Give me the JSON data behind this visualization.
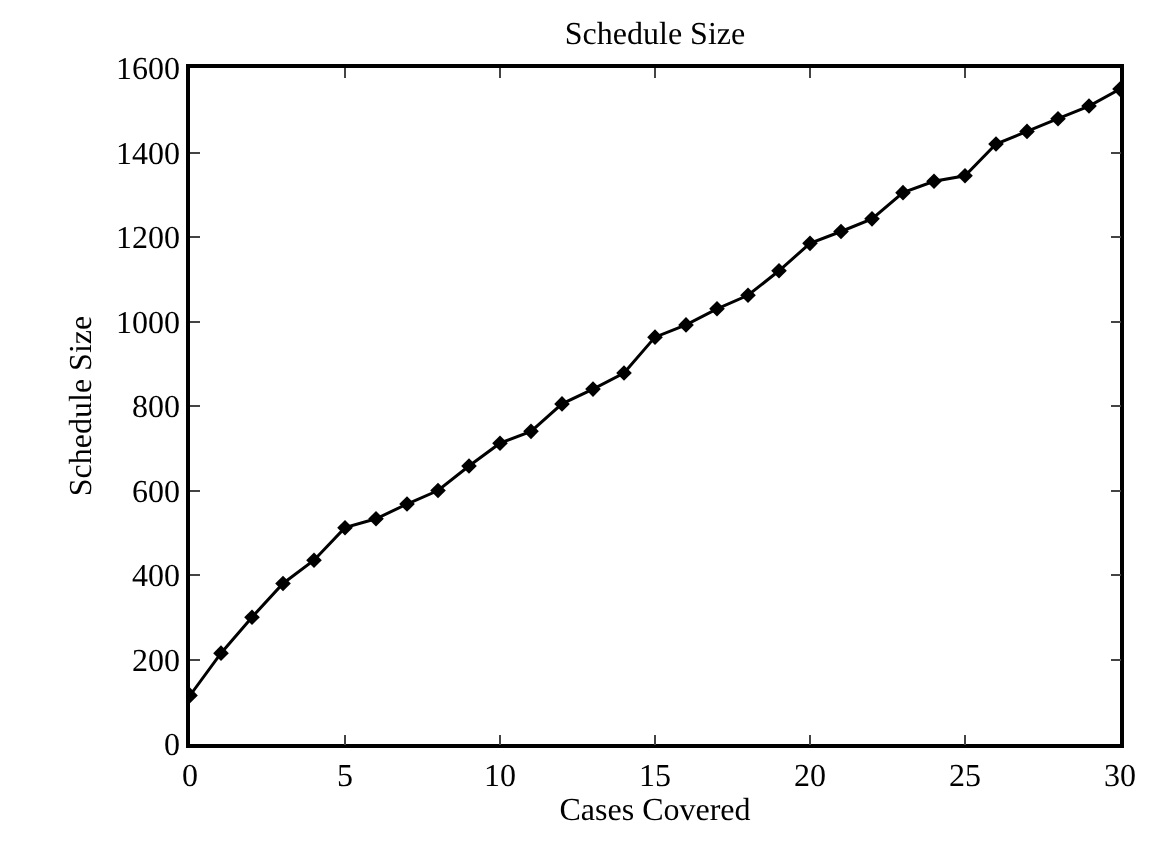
{
  "chart_data": {
    "type": "line",
    "title": "Schedule Size",
    "xlabel": "Cases Covered",
    "ylabel": "Schedule Size",
    "x": [
      0,
      1,
      2,
      3,
      4,
      5,
      6,
      7,
      8,
      9,
      10,
      11,
      12,
      13,
      14,
      15,
      16,
      17,
      18,
      19,
      20,
      21,
      22,
      23,
      24,
      25,
      26,
      27,
      28,
      29,
      30
    ],
    "series": [
      {
        "color": "#000000",
        "values": [
          115,
          215,
          300,
          380,
          435,
          512,
          533,
          568,
          600,
          658,
          712,
          740,
          805,
          840,
          878,
          963,
          992,
          1030,
          1062,
          1120,
          1185,
          1213,
          1243,
          1305,
          1332,
          1345,
          1420,
          1450,
          1480,
          1510,
          1550
        ]
      }
    ],
    "xlim": [
      0,
      30
    ],
    "xticks": [
      0,
      5,
      10,
      15,
      20,
      25,
      30
    ],
    "ylim": [
      0,
      1600
    ],
    "yticks": [
      0,
      200,
      400,
      600,
      800,
      1000,
      1200,
      1400,
      1600
    ],
    "marker": "diamond",
    "line_style": "solid"
  }
}
